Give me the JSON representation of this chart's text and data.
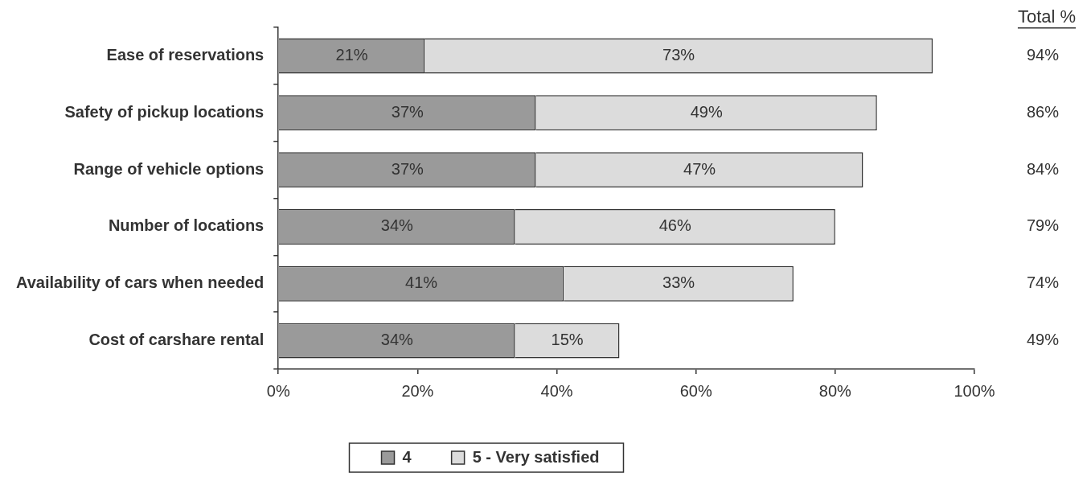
{
  "chart_data": {
    "type": "bar",
    "orientation": "horizontal",
    "stacked": true,
    "categories": [
      "Ease of reservations",
      "Safety of pickup locations",
      "Range of vehicle options",
      "Number of locations",
      "Availability of cars when needed",
      "Cost of carshare rental"
    ],
    "series": [
      {
        "name": "4",
        "color": "#9a9a9a",
        "values": [
          21,
          37,
          37,
          34,
          41,
          34
        ],
        "value_labels": [
          "21%",
          "37%",
          "37%",
          "34%",
          "41%",
          "34%"
        ]
      },
      {
        "name": "5 - Very satisfied",
        "color": "#dcdcdc",
        "values": [
          73,
          49,
          47,
          46,
          33,
          15
        ],
        "value_labels": [
          "73%",
          "49%",
          "47%",
          "46%",
          "33%",
          "15%"
        ]
      }
    ],
    "annotations": [
      "Total %",
      "94%",
      "86%",
      "84%",
      "79%",
      "74%",
      "49%"
    ],
    "xlim": [
      0,
      100
    ],
    "xticks": [
      {
        "value": 0,
        "label": "0%"
      },
      {
        "value": 20,
        "label": "20%"
      },
      {
        "value": 40,
        "label": "40%"
      },
      {
        "value": 60,
        "label": "60%"
      },
      {
        "value": 80,
        "label": "80%"
      },
      {
        "value": 100,
        "label": "100%"
      }
    ],
    "grid": false,
    "legend": "bottom"
  }
}
